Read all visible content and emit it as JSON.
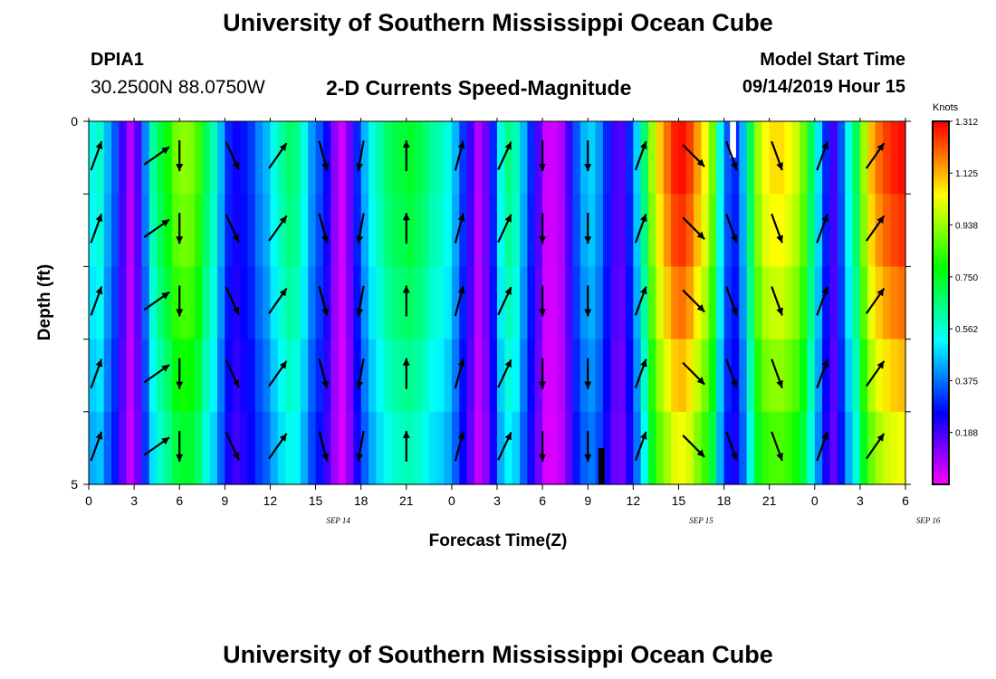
{
  "header": {
    "title": "University of Southern Mississippi Ocean Cube",
    "station_id": "DPIA1",
    "coordinates": "30.2500N 88.0750W",
    "plot_title": "2-D Currents Speed-Magnitude",
    "model_start_label": "Model Start Time",
    "model_start_value": "09/14/2019 Hour 15"
  },
  "footer": {
    "title": "University of Southern Mississippi Ocean Cube"
  },
  "chart_data": {
    "type": "heatmap",
    "title": "2-D Currents Speed-Magnitude",
    "xlabel": "Forecast Time(Z)",
    "ylabel": "Depth (ft)",
    "x_tick_labels": [
      "0",
      "3",
      "6",
      "9",
      "12",
      "15",
      "18",
      "21",
      "0",
      "3",
      "6",
      "9",
      "12",
      "15",
      "18",
      "21",
      "0",
      "3",
      "6"
    ],
    "x_date_labels": [
      {
        "text": "SEP 14",
        "at_index": 5.5
      },
      {
        "text": "SEP 15",
        "at_index": 13.5
      },
      {
        "text": "SEP 16",
        "at_index": 18.5
      }
    ],
    "x_hours_range": [
      0,
      54
    ],
    "ylim": [
      0,
      5
    ],
    "y_tick_labels": [
      "0",
      "5"
    ],
    "depth_rows": [
      0.25,
      1.25,
      2.25,
      3.25,
      4.25
    ],
    "colorbar": {
      "unit": "Knots",
      "min": 0,
      "max": 1.312,
      "tick_labels": [
        "1.312",
        "1.125",
        "0.938",
        "0.750",
        "0.562",
        "0.375",
        "0.188"
      ],
      "tick_values": [
        1.312,
        1.125,
        0.938,
        0.75,
        0.562,
        0.375,
        0.188
      ]
    },
    "speed_by_hour_knots": [
      0.55,
      0.58,
      0.45,
      0.35,
      0.2,
      0.08,
      0.18,
      0.4,
      0.62,
      0.72,
      0.8,
      0.9,
      0.93,
      0.92,
      0.85,
      0.7,
      0.6,
      0.45,
      0.3,
      0.25,
      0.28,
      0.32,
      0.4,
      0.45,
      0.55,
      0.62,
      0.68,
      0.65,
      0.55,
      0.42,
      0.35,
      0.25,
      0.12,
      0.05,
      0.15,
      0.3,
      0.45,
      0.55,
      0.62,
      0.68,
      0.72,
      0.73,
      0.75,
      0.72,
      0.68,
      0.62,
      0.6,
      0.55,
      0.45,
      0.32,
      0.2,
      0.08,
      0.15,
      0.3,
      0.55,
      0.65,
      0.6,
      0.45,
      0.3,
      0.18,
      0.05,
      0.05,
      0.08,
      0.2,
      0.35,
      0.45,
      0.48,
      0.42,
      0.3,
      0.2,
      0.18,
      0.3,
      0.48,
      0.68,
      0.95,
      1.1,
      1.2,
      1.28,
      1.3,
      1.25,
      1.15,
      1.05,
      0.9,
      0.55,
      0.35,
      0.3,
      0.45,
      0.7,
      0.95,
      1.05,
      1.08,
      1.08,
      1.05,
      1.0,
      0.9,
      0.7,
      0.5,
      0.3,
      0.2,
      0.35,
      0.55,
      0.7,
      0.95,
      1.12,
      1.2,
      1.25,
      1.28,
      1.3
    ],
    "depth_factor": [
      1.0,
      0.97,
      0.92,
      0.86,
      0.8
    ],
    "direction_arrows": [
      {
        "hour": 0.5,
        "dir_deg": 20
      },
      {
        "hour": 4.5,
        "dir_deg": 55
      },
      {
        "hour": 6.0,
        "dir_deg": 180
      },
      {
        "hour": 9.5,
        "dir_deg": 155
      },
      {
        "hour": 12.5,
        "dir_deg": 35
      },
      {
        "hour": 15.5,
        "dir_deg": 165
      },
      {
        "hour": 18.0,
        "dir_deg": 190
      },
      {
        "hour": 21.0,
        "dir_deg": 0
      },
      {
        "hour": 24.5,
        "dir_deg": 15
      },
      {
        "hour": 27.5,
        "dir_deg": 25
      },
      {
        "hour": 30.0,
        "dir_deg": 180
      },
      {
        "hour": 33.0,
        "dir_deg": 180
      },
      {
        "hour": 36.5,
        "dir_deg": 20
      },
      {
        "hour": 40.0,
        "dir_deg": 135
      },
      {
        "hour": 42.5,
        "dir_deg": 160
      },
      {
        "hour": 45.5,
        "dir_deg": 160
      },
      {
        "hour": 48.5,
        "dir_deg": 20
      },
      {
        "hour": 52.0,
        "dir_deg": 35
      }
    ],
    "missing_cells": [
      {
        "hour_from": 42.4,
        "hour_to": 42.8,
        "depth_from": 0,
        "depth_to": 0.5,
        "color": "#ffffff"
      },
      {
        "hour_from": 33.7,
        "hour_to": 34.1,
        "depth_from": 4.5,
        "depth_to": 5.0,
        "color": "#000000"
      }
    ]
  }
}
